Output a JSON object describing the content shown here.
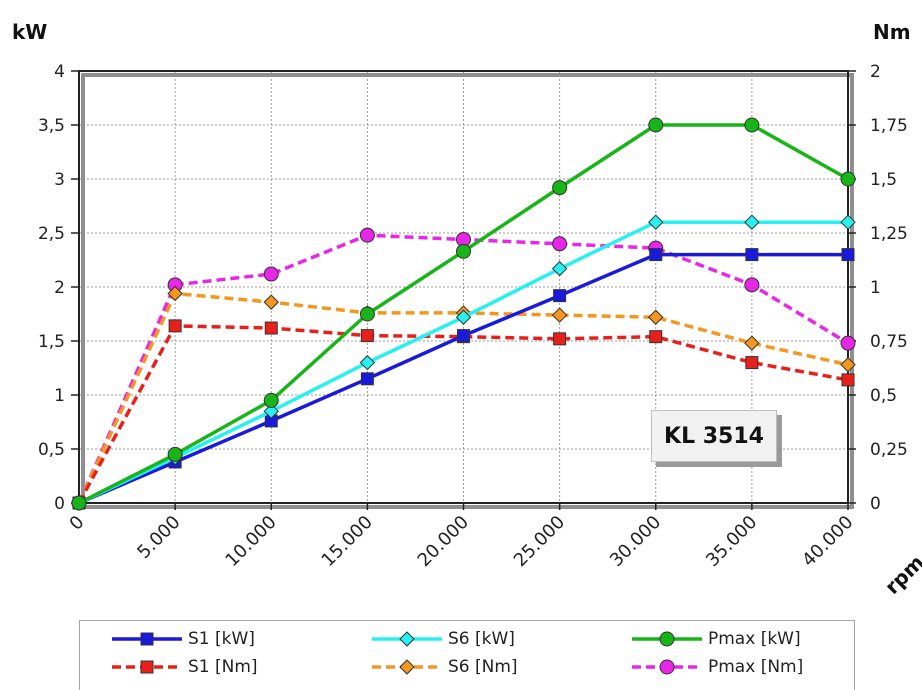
{
  "chart_data": {
    "type": "line",
    "title": "",
    "badge": "KL 3514",
    "xlabel": "rpm",
    "ylabel_left": "kW",
    "ylabel_right": "Nm",
    "x": [
      0,
      5000,
      10000,
      15000,
      20000,
      25000,
      30000,
      35000,
      40000
    ],
    "x_tick_labels": [
      "0",
      "5.000",
      "10.000",
      "15.000",
      "20.000",
      "25.000",
      "30.000",
      "35.000",
      "40.000"
    ],
    "ylim_left": [
      0,
      4
    ],
    "ylim_right": [
      0,
      2
    ],
    "y_ticks_left": [
      "0",
      "0,5",
      "1",
      "1,5",
      "2",
      "2,5",
      "3",
      "3,5",
      "4"
    ],
    "y_ticks_right": [
      "0",
      "0,25",
      "0,5",
      "0,75",
      "1",
      "1,25",
      "1,5",
      "1,75",
      "2"
    ],
    "grid": true,
    "legend_position": "bottom",
    "series": [
      {
        "name": "S1 [kW]",
        "axis": "left",
        "color": "#1a1adc",
        "dash": false,
        "marker": "square",
        "values": [
          0,
          0.38,
          0.76,
          1.15,
          1.55,
          1.92,
          2.3,
          2.3,
          2.3
        ]
      },
      {
        "name": "S6 [kW]",
        "axis": "left",
        "color": "#26f0f0",
        "dash": false,
        "marker": "diamond",
        "values": [
          0,
          0.42,
          0.85,
          1.3,
          1.72,
          2.17,
          2.6,
          2.6,
          2.6
        ]
      },
      {
        "name": "Pmax [kW]",
        "axis": "left",
        "color": "#17b517",
        "dash": false,
        "marker": "circle",
        "values": [
          0,
          0.45,
          0.95,
          1.75,
          2.33,
          2.92,
          3.5,
          3.5,
          3.0
        ]
      },
      {
        "name": "S1 [Nm]",
        "axis": "right",
        "color": "#e8201c",
        "dash": true,
        "marker": "square",
        "values": [
          0,
          0.82,
          0.81,
          0.775,
          0.77,
          0.76,
          0.77,
          0.65,
          0.57
        ]
      },
      {
        "name": "S6 [Nm]",
        "axis": "right",
        "color": "#f5961e",
        "dash": true,
        "marker": "diamond",
        "values": [
          0,
          0.97,
          0.93,
          0.88,
          0.88,
          0.87,
          0.86,
          0.74,
          0.64
        ]
      },
      {
        "name": "Pmax [Nm]",
        "axis": "right",
        "color": "#e826e8",
        "dash": true,
        "marker": "circle",
        "values": [
          0,
          1.01,
          1.06,
          1.24,
          1.22,
          1.2,
          1.18,
          1.01,
          0.74
        ]
      }
    ]
  }
}
